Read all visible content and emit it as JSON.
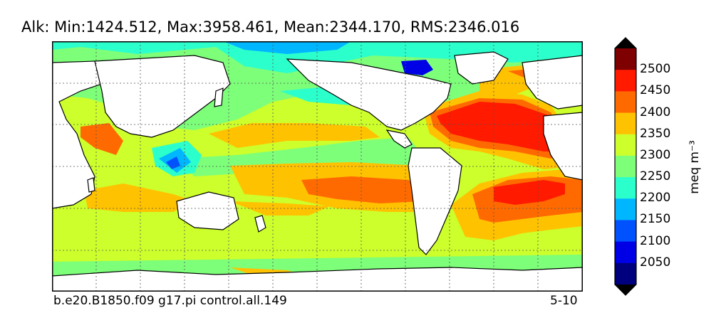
{
  "title": "Alk: Min:1424.512, Max:3958.461, Mean:2344.170, RMS:2346.016",
  "footer_left": "b.e20.B1850.f09 g17.pi control.all.149",
  "footer_right": "5-10",
  "colorbar": {
    "unit": "meq m⁻³",
    "tick_labels": [
      "2500",
      "2450",
      "2400",
      "2350",
      "2300",
      "2250",
      "2200",
      "2150",
      "2100",
      "2050"
    ],
    "levels": [
      {
        "min": 2500,
        "color": "#7f0000"
      },
      {
        "min": 2450,
        "color": "#ff1a00"
      },
      {
        "min": 2400,
        "color": "#ff6a00"
      },
      {
        "min": 2350,
        "color": "#ffc200"
      },
      {
        "min": 2300,
        "color": "#ccff2b"
      },
      {
        "min": 2250,
        "color": "#7dff7a"
      },
      {
        "min": 2200,
        "color": "#2bffcc"
      },
      {
        "min": 2150,
        "color": "#00b6ff"
      },
      {
        "min": 2100,
        "color": "#0052ff"
      },
      {
        "min": 2050,
        "color": "#0000e6"
      },
      {
        "min": 0,
        "color": "#00007f"
      }
    ],
    "extend": "both"
  },
  "colors": {
    "land": "#ffffff",
    "coast": "#000000",
    "grid": "#555555"
  }
}
